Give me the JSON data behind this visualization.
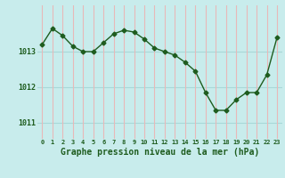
{
  "x": [
    0,
    1,
    2,
    3,
    4,
    5,
    6,
    7,
    8,
    9,
    10,
    11,
    12,
    13,
    14,
    15,
    16,
    17,
    18,
    19,
    20,
    21,
    22,
    23
  ],
  "y": [
    1013.2,
    1013.65,
    1013.45,
    1013.15,
    1013.0,
    1013.0,
    1013.25,
    1013.5,
    1013.6,
    1013.55,
    1013.35,
    1013.1,
    1013.0,
    1012.9,
    1012.7,
    1012.45,
    1011.85,
    1011.35,
    1011.35,
    1011.65,
    1011.85,
    1011.85,
    1012.35,
    1013.4
  ],
  "line_color": "#1e5c1e",
  "marker": "D",
  "marker_size": 2.5,
  "background_color": "#c8ecec",
  "grid_color_h": "#a8d8d8",
  "grid_color_v": "#e8b8b8",
  "label_color": "#1e5c1e",
  "xlabel": "Graphe pression niveau de la mer (hPa)",
  "xlabel_fontsize": 7,
  "ytick_labels": [
    "1011",
    "1012",
    "1013"
  ],
  "yticks": [
    1011,
    1012,
    1013
  ],
  "ylim": [
    1010.55,
    1014.3
  ],
  "xlim": [
    -0.5,
    23.5
  ],
  "xticks": [
    0,
    1,
    2,
    3,
    4,
    5,
    6,
    7,
    8,
    9,
    10,
    11,
    12,
    13,
    14,
    15,
    16,
    17,
    18,
    19,
    20,
    21,
    22,
    23
  ]
}
